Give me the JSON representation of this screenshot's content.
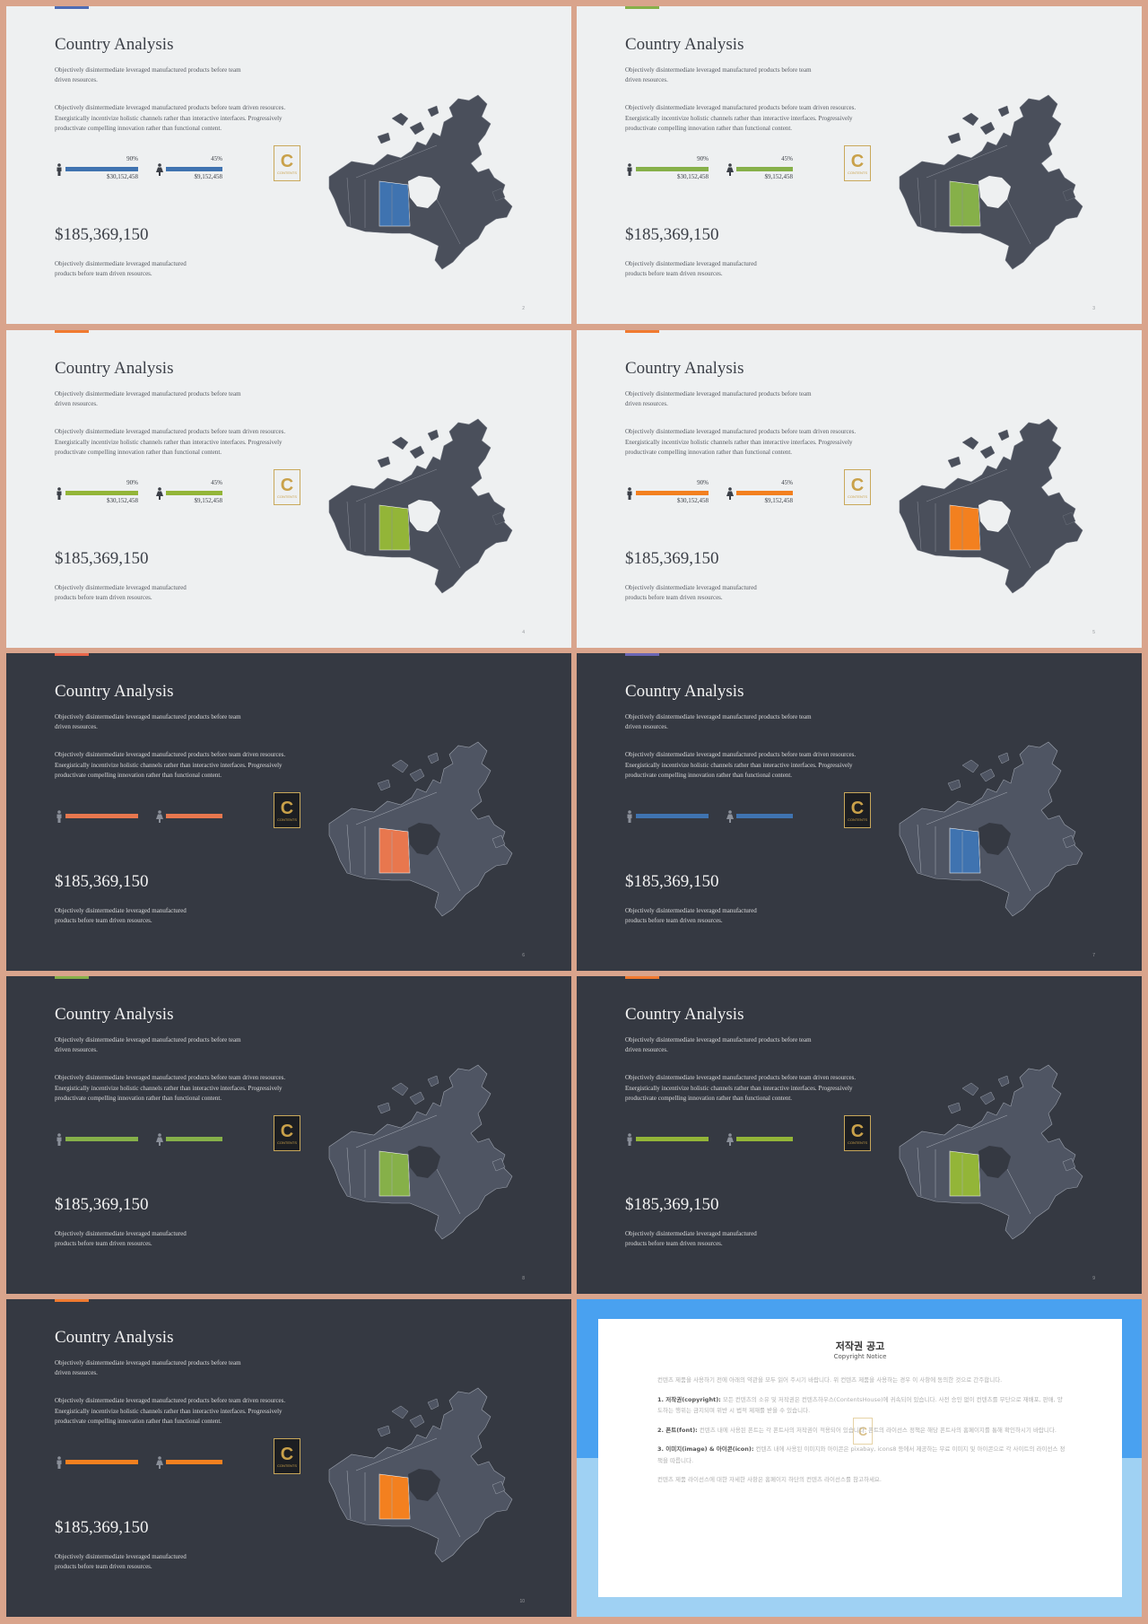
{
  "slides": [
    {
      "theme": "light",
      "accent": "#4c6bb5",
      "highlight": "#3f73b0",
      "page": "2",
      "bar_color": "#3f73b0",
      "show_values": true
    },
    {
      "theme": "light",
      "accent": "#86b049",
      "highlight": "#86b049",
      "page": "3",
      "bar_color": "#86b049",
      "show_values": true
    },
    {
      "theme": "light",
      "accent": "#f07a30",
      "highlight": "#93b538",
      "page": "4",
      "bar_color": "#93b538",
      "show_values": true
    },
    {
      "theme": "light",
      "accent": "#f07a30",
      "highlight": "#f3801f",
      "page": "5",
      "bar_color": "#f3801f",
      "show_values": true
    },
    {
      "theme": "dark",
      "accent": "#e9664a",
      "highlight": "#e8774e",
      "page": "6",
      "bar_color": "#e8774e",
      "show_values": false
    },
    {
      "theme": "dark",
      "accent": "#6b66b5",
      "highlight": "#3f73b0",
      "page": "7",
      "bar_color": "#3f73b0",
      "show_values": false
    },
    {
      "theme": "dark",
      "accent": "#86b049",
      "highlight": "#86b049",
      "page": "8",
      "bar_color": "#86b049",
      "show_values": false
    },
    {
      "theme": "dark",
      "accent": "#f07a30",
      "highlight": "#93b538",
      "page": "9",
      "bar_color": "#93b538",
      "show_values": false
    },
    {
      "theme": "dark",
      "accent": "#f07a30",
      "highlight": "#f3801f",
      "page": "10",
      "bar_color": "#f3801f",
      "show_values": false
    }
  ],
  "content": {
    "title": "Country Analysis",
    "subtitle": "Objectively disintermediate leveraged manufactured products before team driven resources.",
    "body": "Objectively disintermediate leveraged manufactured products before team driven resources. Energistically incentivize holistic channels rather than interactive interfaces. Progressively productivate compelling innovation rather than functional content.",
    "stat_male": {
      "percent": "90%",
      "amount": "$30,152,458",
      "fill": 0.9
    },
    "stat_female": {
      "percent": "45%",
      "amount": "$9,152,458",
      "fill": 0.45
    },
    "money": "$185,369,150",
    "footer": "Objectively disintermediate leveraged manufactured products before team driven resources.",
    "logo_letter": "C",
    "logo_text": "CONTENTS"
  },
  "copyright": {
    "title": "저작권 공고",
    "subtitle": "Copyright Notice",
    "intro": "컨텐츠 제품을 사용하기 전에 아래의 약관을 모두 읽어 주시기 바랍니다. 위 컨텐츠 제품을 사용하는 경우 이 사항에 동의한 것으로 간주합니다.",
    "items": [
      {
        "label": "1. 저작권(copyright):",
        "text": "모든 컨텐츠의 소유 및 저작권은 컨텐츠하우스(ContentsHouse)에 귀속되어 있습니다. 사전 승인 없이 컨텐츠를 무단으로 재배포, 판매, 양도하는 행위는 금지되며 위반 시 법적 제재를 받을 수 있습니다."
      },
      {
        "label": "2. 폰트(font):",
        "text": "컨텐츠 내에 사용된 폰트는 각 폰트사의 저작권이 적용되어 있습니다. 폰트의 라이선스 정책은 해당 폰트사의 홈페이지를 통해 확인하시기 바랍니다."
      },
      {
        "label": "3. 이미지(image) & 아이콘(icon):",
        "text": "컨텐츠 내에 사용된 이미지와 아이콘은 pixabay, icons8 등에서 제공하는 무료 이미지 및 아이콘으로 각 사이트의 라이선스 정책을 따릅니다."
      }
    ],
    "outro": "컨텐츠 제품 라이선스에 대한 자세한 사항은 홈페이지 하단의 컨텐츠 라이선스를 참고하세요."
  }
}
